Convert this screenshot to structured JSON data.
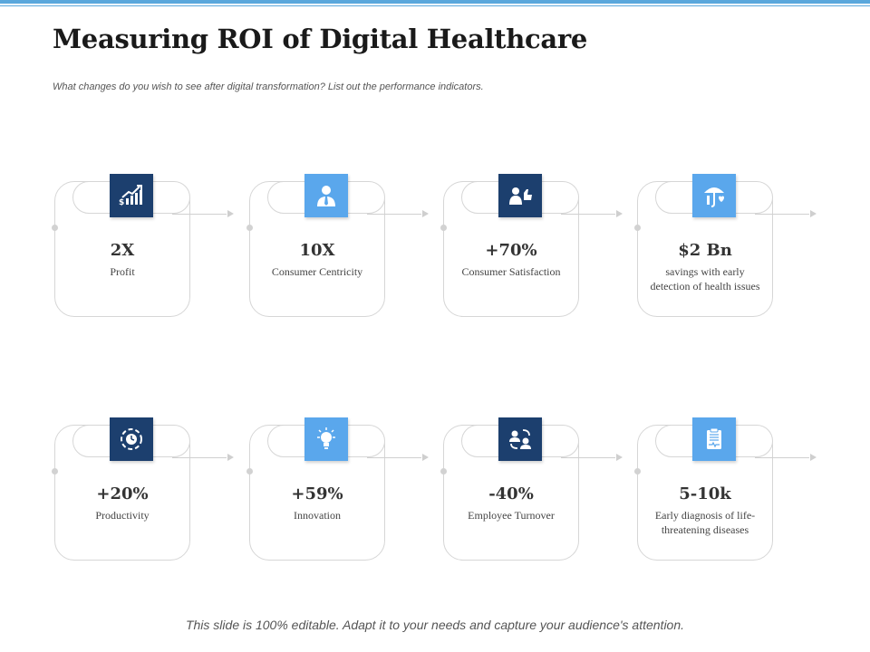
{
  "title": "Measuring ROI of Digital Healthcare",
  "subtitle": "What changes do you wish to see after digital transformation?  List out the performance indicators.",
  "footer": "This slide is 100% editable.  Adapt it to your needs and capture your audience's attention.",
  "colors": {
    "dark_icon": "#1c3f6e",
    "light_icon": "#5aa7ec",
    "border": "#d6d6d6"
  },
  "indicators": [
    {
      "value": "2X",
      "label": "Profit",
      "icon": "growth-chart-icon",
      "tone": "dark"
    },
    {
      "value": "10X",
      "label": "Consumer  Centricity",
      "icon": "person-icon",
      "tone": "light"
    },
    {
      "value": "+70%",
      "label": "Consumer Satisfaction",
      "icon": "thumbs-up-person-icon",
      "tone": "dark"
    },
    {
      "value": "$2 Bn",
      "label": "savings with early detection  of health issues",
      "icon": "umbrella-heart-icon",
      "tone": "light"
    },
    {
      "value": "+20%",
      "label": "Productivity",
      "icon": "gear-clock-icon",
      "tone": "dark"
    },
    {
      "value": "+59%",
      "label": "Innovation",
      "icon": "lightbulb-icon",
      "tone": "light"
    },
    {
      "value": "-40%",
      "label": "Employee Turnover",
      "icon": "people-exchange-icon",
      "tone": "dark"
    },
    {
      "value": "5-10k",
      "label": "Early diagnosis of life-threatening  diseases",
      "icon": "clipboard-pulse-icon",
      "tone": "light"
    }
  ]
}
